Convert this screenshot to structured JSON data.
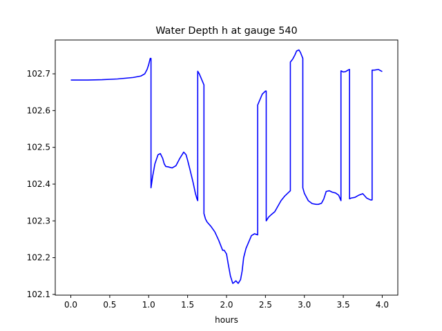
{
  "chart_data": {
    "type": "line",
    "title": "Water Depth h at gauge 540",
    "xlabel": "hours",
    "ylabel": "",
    "xlim": [
      -0.2,
      4.2
    ],
    "ylim": [
      102.098,
      102.792
    ],
    "xticks": [
      0.0,
      0.5,
      1.0,
      1.5,
      2.0,
      2.5,
      3.0,
      3.5,
      4.0
    ],
    "xtick_labels": [
      "0.0",
      "0.5",
      "1.0",
      "1.5",
      "2.0",
      "2.5",
      "3.0",
      "3.5",
      "4.0"
    ],
    "yticks": [
      102.1,
      102.2,
      102.3,
      102.4,
      102.5,
      102.6,
      102.7
    ],
    "ytick_labels": [
      "102.1",
      "102.2",
      "102.3",
      "102.4",
      "102.5",
      "102.6",
      "102.7"
    ],
    "grid": false,
    "series": [
      {
        "color": "#0000ff",
        "x": [
          0.0,
          0.2,
          0.4,
          0.6,
          0.8,
          0.9,
          0.95,
          0.98,
          1.0,
          1.02,
          1.03,
          1.03,
          1.05,
          1.08,
          1.12,
          1.15,
          1.18,
          1.2,
          1.22,
          1.25,
          1.3,
          1.35,
          1.4,
          1.45,
          1.48,
          1.5,
          1.53,
          1.57,
          1.6,
          1.62,
          1.63,
          1.63,
          1.65,
          1.68,
          1.71,
          1.71,
          1.73,
          1.75,
          1.8,
          1.85,
          1.9,
          1.95,
          1.97,
          2.0,
          2.02,
          2.05,
          2.08,
          2.1,
          2.12,
          2.15,
          2.18,
          2.2,
          2.22,
          2.25,
          2.28,
          2.32,
          2.36,
          2.4,
          2.4,
          2.43,
          2.46,
          2.5,
          2.51,
          2.51,
          2.54,
          2.58,
          2.62,
          2.66,
          2.7,
          2.75,
          2.8,
          2.82,
          2.82,
          2.85,
          2.88,
          2.9,
          2.93,
          2.95,
          2.98,
          2.98,
          3.0,
          3.05,
          3.1,
          3.15,
          3.18,
          3.22,
          3.25,
          3.28,
          3.32,
          3.36,
          3.4,
          3.44,
          3.47,
          3.47,
          3.5,
          3.53,
          3.56,
          3.58,
          3.58,
          3.6,
          3.65,
          3.7,
          3.75,
          3.8,
          3.85,
          3.87,
          3.87,
          3.9,
          3.95,
          4.0
        ],
        "y": [
          102.683,
          102.683,
          102.684,
          102.686,
          102.69,
          102.694,
          102.7,
          102.712,
          102.725,
          102.742,
          102.742,
          102.39,
          102.42,
          102.455,
          102.48,
          102.483,
          102.47,
          102.455,
          102.448,
          102.447,
          102.444,
          102.45,
          102.47,
          102.487,
          102.48,
          102.465,
          102.44,
          102.405,
          102.375,
          102.36,
          102.355,
          102.707,
          102.7,
          102.685,
          102.67,
          102.32,
          102.305,
          102.297,
          102.285,
          102.27,
          102.247,
          102.22,
          102.22,
          102.21,
          102.185,
          102.15,
          102.13,
          102.133,
          102.137,
          102.13,
          102.14,
          102.163,
          102.2,
          102.225,
          102.24,
          102.26,
          102.265,
          102.262,
          102.615,
          102.63,
          102.645,
          102.653,
          102.653,
          102.3,
          102.31,
          102.318,
          102.325,
          102.34,
          102.355,
          102.368,
          102.378,
          102.382,
          102.732,
          102.74,
          102.752,
          102.762,
          102.765,
          102.758,
          102.742,
          102.39,
          102.375,
          102.355,
          102.347,
          102.345,
          102.345,
          102.348,
          102.36,
          102.38,
          102.382,
          102.378,
          102.376,
          102.37,
          102.355,
          102.708,
          102.705,
          102.706,
          102.71,
          102.712,
          102.36,
          102.362,
          102.364,
          102.37,
          102.374,
          102.362,
          102.357,
          102.357,
          102.71,
          102.71,
          102.712,
          102.706
        ]
      }
    ]
  }
}
